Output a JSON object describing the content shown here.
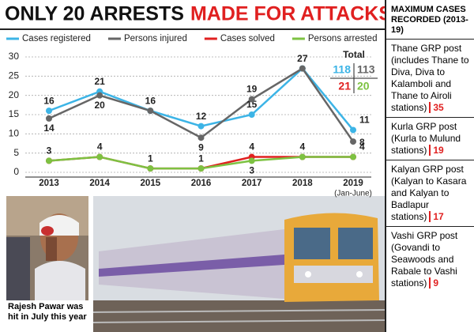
{
  "chart_data": {
    "type": "line",
    "title_parts": [
      "ONLY 20 ARRESTS",
      "MADE FOR ATTACKS"
    ],
    "categories": [
      "2013",
      "2014",
      "2015",
      "2016",
      "2017",
      "2018",
      "2019"
    ],
    "category_note": "(Jan-June)",
    "series": [
      {
        "name": "Cases registered",
        "color": "#3cb4e6",
        "values": [
          16,
          21,
          16,
          12,
          15,
          27,
          11
        ],
        "total": 118
      },
      {
        "name": "Persons injured",
        "color": "#666666",
        "values": [
          14,
          20,
          16,
          9,
          19,
          27,
          8
        ],
        "total": 113
      },
      {
        "name": "Cases solved",
        "color": "#e02020",
        "values": [
          3,
          4,
          1,
          1,
          4,
          4,
          4
        ],
        "total": 21
      },
      {
        "name": "Persons arrested",
        "color": "#7dc242",
        "values": [
          3,
          4,
          1,
          1,
          3,
          4,
          4
        ],
        "total": 20
      }
    ],
    "totals_title": "Total",
    "ylim": [
      0,
      30
    ],
    "yticks": [
      0,
      5,
      10,
      15,
      20,
      25,
      30
    ],
    "grid": true
  },
  "sidebar": {
    "heading": "MAXIMUM CASES RECORDED (2013-19)",
    "items": [
      {
        "text": "Thane GRP post (includes Thane to Diva, Diva to Kalamboli and Thane to Airoli stations)",
        "count": 35
      },
      {
        "text": "Kurla GRP post (Kurla to Mulund stations)",
        "count": 19
      },
      {
        "text": "Kalyan GRP post (Kalyan to Kasara and Kalyan to Badlapur stations)",
        "count": 17
      },
      {
        "text": "Vashi GRP post (Govandi to Seawoods and Rabale to Vashi stations)",
        "count": 9
      }
    ]
  },
  "photo_caption": "Rajesh Pawar was hit in July this year"
}
